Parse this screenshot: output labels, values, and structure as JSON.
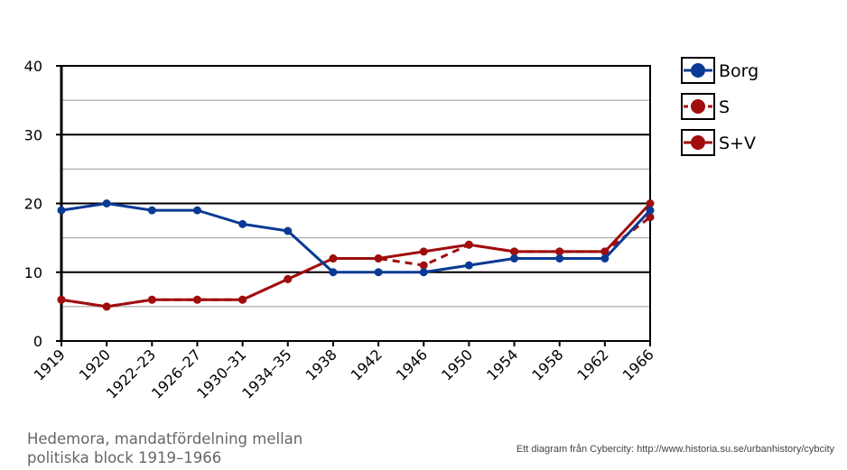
{
  "chart_data": {
    "type": "line",
    "categories": [
      "1919",
      "1920",
      "1922–23",
      "1926–27",
      "1930–31",
      "1934–35",
      "1938",
      "1942",
      "1946",
      "1950",
      "1954",
      "1958",
      "1962",
      "1966"
    ],
    "ylim": [
      0,
      40
    ],
    "y_ticks": [
      "0",
      "10",
      "20",
      "30",
      "40"
    ],
    "grid": true,
    "legend_position": "right",
    "series": [
      {
        "name": "Borg",
        "color": "#0a3a94",
        "style": "solid",
        "values": [
          19,
          20,
          19,
          19,
          17,
          16,
          10,
          10,
          10,
          11,
          12,
          12,
          12,
          19
        ]
      },
      {
        "name": "S",
        "color": "#a00d0d",
        "style": "dashed",
        "values": [
          6,
          5,
          6,
          6,
          6,
          9,
          12,
          12,
          11,
          14,
          13,
          13,
          13,
          18
        ]
      },
      {
        "name": "S+V",
        "color": "#a00d0d",
        "style": "solid",
        "values": [
          6,
          5,
          6,
          6,
          6,
          9,
          12,
          12,
          13,
          14,
          13,
          13,
          13,
          20
        ]
      }
    ],
    "caption": "Hedemora, mandatfördelning  mellan\npolitiska block 1919–1966",
    "credit": "Ett diagram från Cybercity: http://www.historia.su.se/urbanhistory/cybcity"
  }
}
